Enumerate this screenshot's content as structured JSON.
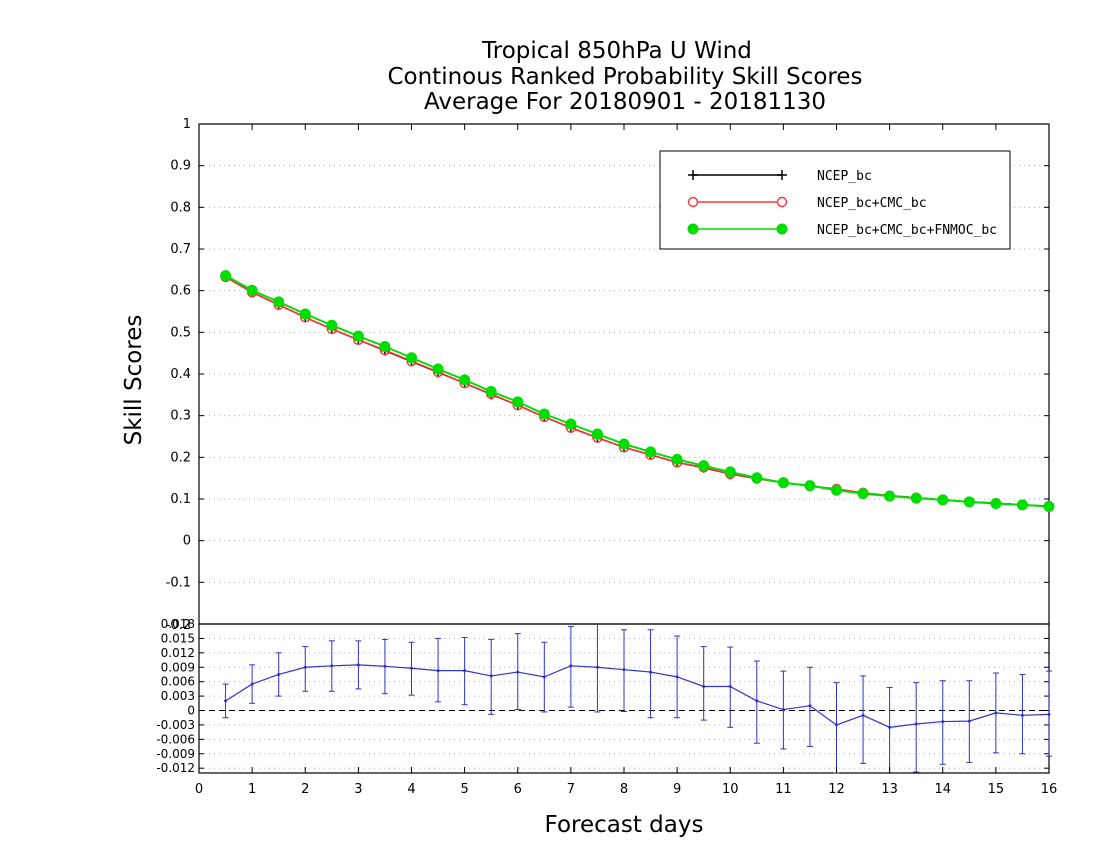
{
  "chart_data": [
    {
      "type": "line",
      "title": [
        "Tropical 850hPa U Wind",
        "Continous Ranked Probability Skill Scores",
        "Average For 20180901 - 20181130"
      ],
      "xlabel": "Forecast days",
      "ylabel": "Skill Scores",
      "xlim": [
        0,
        16
      ],
      "ylim": [
        -0.2,
        1.0
      ],
      "x_ticks": [
        0,
        1,
        2,
        3,
        4,
        5,
        6,
        7,
        8,
        9,
        10,
        11,
        12,
        13,
        14,
        15,
        16
      ],
      "y_ticks": [
        "-0.1",
        "0",
        "0.1",
        "0.2",
        "0.3",
        "0.4",
        "0.5",
        "0.6",
        "0.7",
        "0.8",
        "0.9",
        "1"
      ],
      "y_tick_values": [
        -0.1,
        0,
        0.1,
        0.2,
        0.3,
        0.4,
        0.5,
        0.6,
        0.7,
        0.8,
        0.9,
        1.0
      ],
      "grid": "horizontal dotted",
      "legend_position": "top-right",
      "x": [
        0.5,
        1.0,
        1.5,
        2.0,
        2.5,
        3.0,
        3.5,
        4.0,
        4.5,
        5.0,
        5.5,
        6.0,
        6.5,
        7.0,
        7.5,
        8.0,
        8.5,
        9.0,
        9.5,
        10.0,
        10.5,
        11.0,
        11.5,
        12.0,
        12.5,
        13.0,
        13.5,
        14.0,
        14.5,
        15.0,
        15.5,
        16.0
      ],
      "series": [
        {
          "name": "NCEP_bc",
          "color": "#000000",
          "marker": "plus",
          "values": [
            0.633,
            0.596,
            0.566,
            0.536,
            0.508,
            0.482,
            0.456,
            0.43,
            0.404,
            0.378,
            0.351,
            0.325,
            0.297,
            0.271,
            0.247,
            0.224,
            0.206,
            0.188,
            0.175,
            0.16,
            0.149,
            0.139,
            0.131,
            0.124,
            0.114,
            0.108,
            0.103,
            0.098,
            0.093,
            0.09,
            0.086,
            0.083
          ]
        },
        {
          "name": "NCEP_bc+CMC_bc",
          "color": "#ff3333",
          "marker": "open-circle",
          "values": [
            0.633,
            0.596,
            0.566,
            0.536,
            0.508,
            0.482,
            0.457,
            0.431,
            0.405,
            0.378,
            0.352,
            0.325,
            0.297,
            0.271,
            0.247,
            0.224,
            0.206,
            0.188,
            0.176,
            0.16,
            0.149,
            0.14,
            0.131,
            0.124,
            0.115,
            0.108,
            0.103,
            0.098,
            0.093,
            0.09,
            0.086,
            0.083
          ]
        },
        {
          "name": "NCEP_bc+CMC_bc+FNMOC_bc",
          "color": "#00dd00",
          "marker": "filled-circle",
          "values": [
            0.636,
            0.601,
            0.573,
            0.544,
            0.517,
            0.491,
            0.466,
            0.439,
            0.412,
            0.386,
            0.358,
            0.333,
            0.304,
            0.28,
            0.256,
            0.232,
            0.213,
            0.195,
            0.18,
            0.165,
            0.151,
            0.139,
            0.132,
            0.121,
            0.113,
            0.107,
            0.102,
            0.098,
            0.093,
            0.089,
            0.086,
            0.082
          ]
        }
      ]
    },
    {
      "type": "line",
      "xlim": [
        0,
        16
      ],
      "ylim": [
        -0.013,
        0.018
      ],
      "y_ticks": [
        "-0.012",
        "-0.009",
        "-0.006",
        "-0.003",
        "0",
        "0.003",
        "0.006",
        "0.009",
        "0.012",
        "0.015",
        "0.018"
      ],
      "y_tick_values": [
        -0.012,
        -0.009,
        -0.006,
        -0.003,
        0,
        0.003,
        0.006,
        0.009,
        0.012,
        0.015,
        0.018
      ],
      "grid": "horizontal dotted",
      "zero_line": "dashed",
      "series": [
        {
          "color": "#3333cc",
          "x": [
            0.5,
            1.0,
            1.5,
            2.0,
            2.5,
            3.0,
            3.5,
            4.0,
            4.5,
            5.0,
            5.5,
            6.0,
            6.5,
            7.0,
            7.5,
            8.0,
            8.5,
            9.0,
            9.5,
            10.0,
            10.5,
            11.0,
            11.5,
            12.0,
            12.5,
            13.0,
            13.5,
            14.0,
            14.5,
            15.0,
            15.5,
            16.0
          ],
          "values": [
            0.002,
            0.0055,
            0.0075,
            0.009,
            0.0093,
            0.0095,
            0.0092,
            0.0088,
            0.0083,
            0.0083,
            0.0072,
            0.008,
            0.007,
            0.0093,
            0.009,
            0.0085,
            0.008,
            0.007,
            0.005,
            0.005,
            0.002,
            0.0002,
            0.001,
            -0.003,
            -0.001,
            -0.0035,
            -0.0028,
            -0.0023,
            -0.0022,
            -0.0005,
            -0.001,
            -0.0008
          ],
          "error_lower": [
            -0.0015,
            0.0015,
            0.003,
            0.004,
            0.004,
            0.0045,
            0.0035,
            0.0032,
            0.0018,
            0.0012,
            -0.0008,
            0.0002,
            -0.0003,
            0.0007,
            -0.0003,
            -0.0002,
            -0.0015,
            -0.0015,
            -0.002,
            -0.0035,
            -0.0068,
            -0.008,
            -0.0075,
            -0.013,
            -0.011,
            -0.0135,
            -0.0128,
            -0.0112,
            -0.0108,
            -0.0088,
            -0.009,
            -0.0095
          ],
          "error_upper": [
            0.0055,
            0.0095,
            0.012,
            0.0133,
            0.0145,
            0.0145,
            0.0148,
            0.0142,
            0.015,
            0.0152,
            0.0148,
            0.016,
            0.0142,
            0.0175,
            0.019,
            0.0168,
            0.0168,
            0.0155,
            0.0133,
            0.0132,
            0.0103,
            0.0082,
            0.009,
            0.0058,
            0.0072,
            0.0048,
            0.0058,
            0.0062,
            0.0062,
            0.0078,
            0.0075,
            0.0082
          ]
        }
      ]
    }
  ]
}
